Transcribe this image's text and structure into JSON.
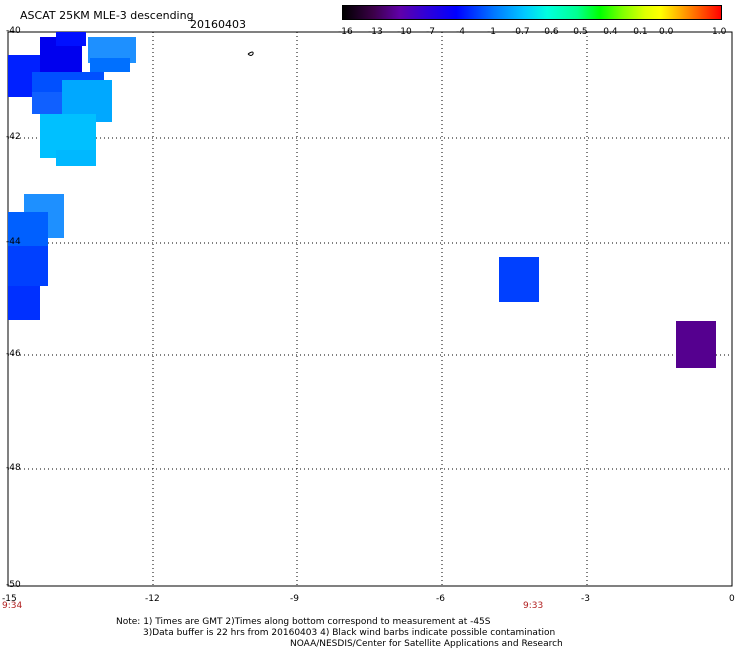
{
  "header": {
    "title": "ASCAT 25KM MLE-3 descending",
    "date": "20160403"
  },
  "colorbar": {
    "ticks": [
      "-16",
      "-13",
      "-10",
      "-7",
      "-4",
      "-1",
      "-0.7",
      "-0.6",
      "-0.5",
      "-0.4",
      "-0.1",
      "0.0",
      "1.0"
    ]
  },
  "map": {
    "y_ticks": [
      "-40",
      "-42",
      "-44",
      "-46",
      "-48",
      "-50"
    ],
    "x_ticks": [
      "-15",
      "-12",
      "-9",
      "-6",
      "-3",
      "0"
    ],
    "times": [
      "9:34",
      "9:33"
    ]
  },
  "notes": {
    "line1": "Note: 1) Times are GMT 2)Times along bottom correspond to measurement at -45S",
    "line2": "3)Data buffer is 22 hrs from 20160403 4) Black wind barbs indicate possible contamination",
    "line3": "NOAA/NESDIS/Center for Satellite Applications and Research"
  },
  "colors": {
    "deep_blue": "#0000ff",
    "mid_blue": "#0040ff",
    "sky_blue": "#00a0ff",
    "cyan": "#00c8ff",
    "purple": "#5a0090"
  }
}
